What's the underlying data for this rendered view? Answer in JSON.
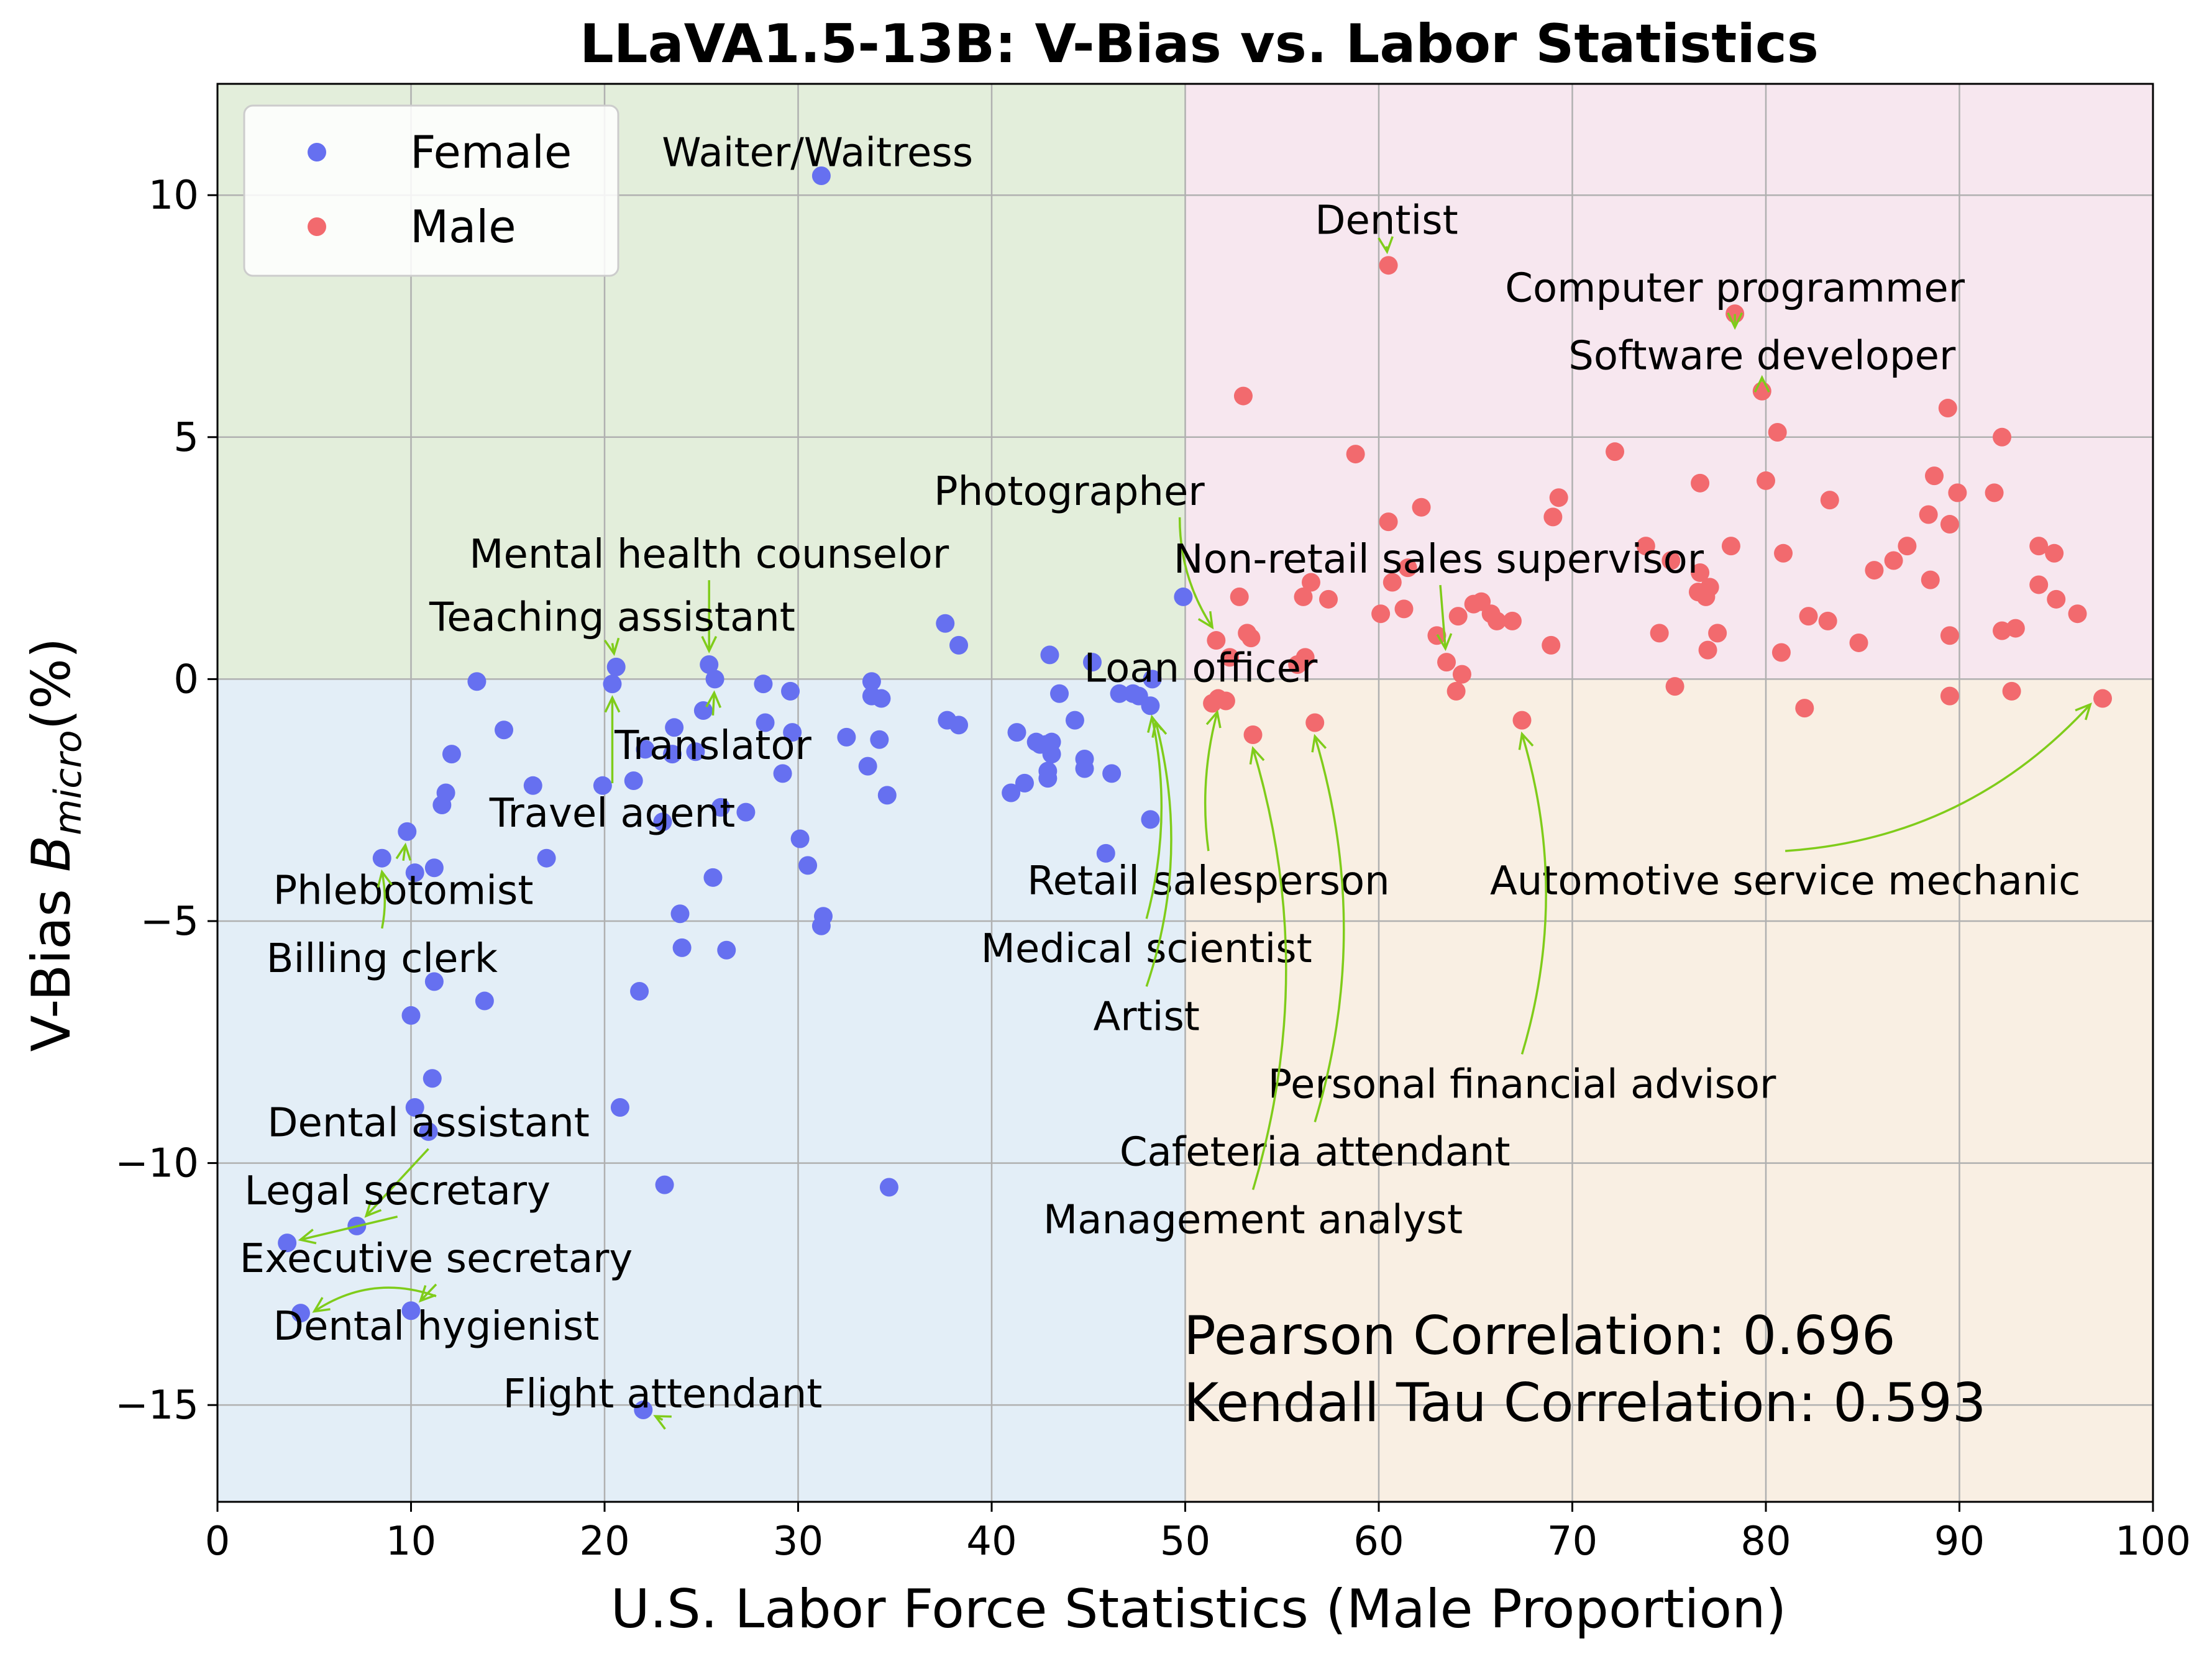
{
  "chart_data": {
    "type": "scatter",
    "title": "LLaVA1.5-13B: V-Bias vs. Labor Statistics",
    "xlabel": "U.S. Labor Force Statistics (Male Proportion)",
    "ylabel_prefix": "V-Bias  ",
    "ylabel_symbol": "B",
    "ylabel_subscript": "micro",
    "ylabel_suffix": "(%)",
    "xlim": [
      0,
      100
    ],
    "ylim": [
      -17,
      12.3
    ],
    "xticks": [
      "0",
      "10",
      "20",
      "30",
      "40",
      "50",
      "60",
      "70",
      "80",
      "90",
      "100"
    ],
    "yticks": [
      "10",
      "5",
      "0",
      "−5",
      "−10",
      "−15"
    ],
    "grid": true,
    "legend_position": "top-left",
    "quadrant_colors": {
      "top_left": "#e3eedb",
      "top_right": "#f7e7ef",
      "bottom_left": "#e3eef7",
      "bottom_right": "#f9efe3"
    },
    "annotation_arrow_color": "#7fcc1a",
    "series": [
      {
        "name": "Female",
        "color": "#6670f0",
        "points": [
          [
            31.2,
            10.4
          ],
          [
            49.9,
            1.7
          ],
          [
            37.6,
            1.15
          ],
          [
            38.3,
            0.7
          ],
          [
            20.6,
            0.25
          ],
          [
            25.4,
            0.3
          ],
          [
            25.7,
            0
          ],
          [
            20.4,
            -0.1
          ],
          [
            13.4,
            -0.05
          ],
          [
            14.8,
            -1.05
          ],
          [
            12.1,
            -1.55
          ],
          [
            16.3,
            -2.2
          ],
          [
            11.8,
            -2.35
          ],
          [
            11.6,
            -2.6
          ],
          [
            17.0,
            -3.7
          ],
          [
            11.2,
            -3.9
          ],
          [
            10.2,
            -4.0
          ],
          [
            9.8,
            -3.15
          ],
          [
            8.5,
            -3.7
          ],
          [
            11.2,
            -6.25
          ],
          [
            13.8,
            -6.65
          ],
          [
            10.0,
            -6.95
          ],
          [
            11.1,
            -8.25
          ],
          [
            10.2,
            -8.85
          ],
          [
            10.9,
            -9.35
          ],
          [
            7.2,
            -11.3
          ],
          [
            3.6,
            -11.65
          ],
          [
            4.3,
            -13.1
          ],
          [
            10.0,
            -13.05
          ],
          [
            20.8,
            -8.85
          ],
          [
            23.1,
            -10.45
          ],
          [
            21.8,
            -6.45
          ],
          [
            22.0,
            -15.1
          ],
          [
            24.0,
            -5.55
          ],
          [
            23.9,
            -4.85
          ],
          [
            25.6,
            -4.1
          ],
          [
            26.3,
            -5.6
          ],
          [
            26.0,
            -2.65
          ],
          [
            27.3,
            -2.75
          ],
          [
            23.0,
            -2.95
          ],
          [
            19.9,
            -2.2
          ],
          [
            21.5,
            -2.1
          ],
          [
            22.1,
            -1.45
          ],
          [
            23.5,
            -1.55
          ],
          [
            24.7,
            -1.5
          ],
          [
            23.6,
            -1.0
          ],
          [
            25.1,
            -0.65
          ],
          [
            28.2,
            -0.1
          ],
          [
            29.6,
            -0.25
          ],
          [
            28.3,
            -0.9
          ],
          [
            29.7,
            -1.1
          ],
          [
            29.2,
            -1.95
          ],
          [
            30.1,
            -3.3
          ],
          [
            30.5,
            -3.85
          ],
          [
            31.3,
            -4.9
          ],
          [
            31.2,
            -5.1
          ],
          [
            32.5,
            -1.2
          ],
          [
            33.6,
            -1.8
          ],
          [
            34.2,
            -1.25
          ],
          [
            34.6,
            -2.4
          ],
          [
            33.8,
            -0.05
          ],
          [
            33.8,
            -0.35
          ],
          [
            34.3,
            -0.4
          ],
          [
            34.7,
            -10.5
          ],
          [
            37.7,
            -0.85
          ],
          [
            38.3,
            -0.95
          ],
          [
            41.0,
            -2.35
          ],
          [
            41.3,
            -1.1
          ],
          [
            41.7,
            -2.15
          ],
          [
            42.3,
            -1.3
          ],
          [
            42.5,
            -1.35
          ],
          [
            42.8,
            -1.35
          ],
          [
            43.1,
            -1.3
          ],
          [
            43.1,
            -1.55
          ],
          [
            42.9,
            -1.9
          ],
          [
            42.9,
            -2.05
          ],
          [
            43.0,
            0.5
          ],
          [
            43.5,
            -0.3
          ],
          [
            44.3,
            -0.85
          ],
          [
            44.8,
            -1.85
          ],
          [
            44.8,
            -1.65
          ],
          [
            45.2,
            0.35
          ],
          [
            45.9,
            -3.6
          ],
          [
            46.2,
            -1.95
          ],
          [
            46.6,
            -0.3
          ],
          [
            47.3,
            -0.3
          ],
          [
            47.6,
            -0.35
          ],
          [
            48.2,
            -0.55
          ],
          [
            48.2,
            -2.9
          ],
          [
            48.3,
            0.0
          ]
        ]
      },
      {
        "name": "Male",
        "color": "#f26a6e",
        "points": [
          [
            60.5,
            8.55
          ],
          [
            78.4,
            7.55
          ],
          [
            79.8,
            5.95
          ],
          [
            53.0,
            5.85
          ],
          [
            89.4,
            5.6
          ],
          [
            92.2,
            5.0
          ],
          [
            80.6,
            5.1
          ],
          [
            58.8,
            4.65
          ],
          [
            72.2,
            4.7
          ],
          [
            88.7,
            4.2
          ],
          [
            76.6,
            4.05
          ],
          [
            80.0,
            4.1
          ],
          [
            62.2,
            3.55
          ],
          [
            60.5,
            3.25
          ],
          [
            69.3,
            3.75
          ],
          [
            69.0,
            3.35
          ],
          [
            73.8,
            2.75
          ],
          [
            75.1,
            2.45
          ],
          [
            78.2,
            2.75
          ],
          [
            80.9,
            2.6
          ],
          [
            83.3,
            3.7
          ],
          [
            85.6,
            2.25
          ],
          [
            86.6,
            2.45
          ],
          [
            87.3,
            2.75
          ],
          [
            88.4,
            3.4
          ],
          [
            89.5,
            3.2
          ],
          [
            89.9,
            3.85
          ],
          [
            91.8,
            3.85
          ],
          [
            94.1,
            2.75
          ],
          [
            94.9,
            2.6
          ],
          [
            76.6,
            2.2
          ],
          [
            76.5,
            1.8
          ],
          [
            76.9,
            1.7
          ],
          [
            77.1,
            1.9
          ],
          [
            60.7,
            2.0
          ],
          [
            61.5,
            2.3
          ],
          [
            61.3,
            1.45
          ],
          [
            60.1,
            1.35
          ],
          [
            57.4,
            1.65
          ],
          [
            56.1,
            1.7
          ],
          [
            56.5,
            2.0
          ],
          [
            55.8,
            0.3
          ],
          [
            56.2,
            0.45
          ],
          [
            52.8,
            1.7
          ],
          [
            53.2,
            0.95
          ],
          [
            53.4,
            0.85
          ],
          [
            52.3,
            0.45
          ],
          [
            51.6,
            0.8
          ],
          [
            51.4,
            -0.5
          ],
          [
            51.7,
            -0.4
          ],
          [
            52.1,
            -0.45
          ],
          [
            53.5,
            -1.15
          ],
          [
            56.7,
            -0.9
          ],
          [
            63.0,
            0.9
          ],
          [
            63.5,
            0.35
          ],
          [
            64.1,
            1.3
          ],
          [
            64.3,
            0.1
          ],
          [
            64.0,
            -0.25
          ],
          [
            64.9,
            1.55
          ],
          [
            65.3,
            1.6
          ],
          [
            65.8,
            1.35
          ],
          [
            66.1,
            1.2
          ],
          [
            66.9,
            1.2
          ],
          [
            68.9,
            0.7
          ],
          [
            67.4,
            -0.85
          ],
          [
            74.5,
            0.95
          ],
          [
            75.3,
            -0.15
          ],
          [
            77.0,
            0.6
          ],
          [
            77.5,
            0.95
          ],
          [
            80.8,
            0.55
          ],
          [
            82.2,
            1.3
          ],
          [
            83.2,
            1.2
          ],
          [
            84.8,
            0.75
          ],
          [
            82.0,
            -0.6
          ],
          [
            88.5,
            2.05
          ],
          [
            89.5,
            0.9
          ],
          [
            89.5,
            -0.35
          ],
          [
            92.2,
            1.0
          ],
          [
            92.9,
            1.05
          ],
          [
            94.1,
            1.95
          ],
          [
            95.0,
            1.65
          ],
          [
            96.1,
            1.35
          ],
          [
            92.7,
            -0.25
          ],
          [
            97.4,
            -0.4
          ]
        ]
      }
    ],
    "annotations": [
      {
        "label": "Waiter/Waitress",
        "text_at": [
          31.0,
          10.6
        ],
        "anchor": "middle",
        "point": null,
        "curve": 0
      },
      {
        "label": "Dentist",
        "text_at": [
          60.4,
          9.2
        ],
        "anchor": "middle",
        "point": [
          60.5,
          8.55
        ],
        "curve": 0
      },
      {
        "label": "Computer programmer",
        "text_at": [
          78.4,
          7.8
        ],
        "anchor": "middle",
        "point": [
          78.4,
          7.55
        ],
        "curve": 0
      },
      {
        "label": "Software developer",
        "text_at": [
          79.8,
          6.4
        ],
        "anchor": "middle",
        "point": [
          79.8,
          5.95
        ],
        "curve": 0
      },
      {
        "label": "Photographer",
        "text_at": [
          51.0,
          3.6
        ],
        "anchor": "end",
        "point": [
          51.6,
          0.8
        ],
        "curve": 0.15
      },
      {
        "label": "Non-retail sales supervisor",
        "text_at": [
          49.4,
          2.2
        ],
        "anchor": "start",
        "point": [
          63.5,
          0.35
        ],
        "curve": 0
      },
      {
        "label": "Mental health counselor",
        "text_at": [
          25.4,
          2.3
        ],
        "anchor": "middle",
        "point": [
          25.4,
          0.3
        ],
        "curve": 0
      },
      {
        "label": "Teaching assistant",
        "text_at": [
          20.4,
          1.0
        ],
        "anchor": "middle",
        "point": [
          20.6,
          0.25
        ],
        "curve": 0
      },
      {
        "label": "Translator",
        "text_at": [
          25.6,
          -1.65
        ],
        "anchor": "middle",
        "point": [
          25.7,
          0.0
        ],
        "curve": 0
      },
      {
        "label": "Travel agent",
        "text_at": [
          20.4,
          -3.05
        ],
        "anchor": "middle",
        "point": [
          20.4,
          -0.1
        ],
        "curve": 0
      },
      {
        "label": "Loan officer",
        "text_at": [
          50.8,
          -0.05
        ],
        "anchor": "middle",
        "point": null,
        "curve": 0
      },
      {
        "label": "Retail salesperson",
        "text_at": [
          51.2,
          -4.45
        ],
        "anchor": "middle",
        "point": [
          51.7,
          -0.4
        ],
        "curve": -0.1
      },
      {
        "label": "Automotive service mechanic",
        "text_at": [
          81.0,
          -4.45
        ],
        "anchor": "middle",
        "point": [
          97.4,
          -0.4
        ],
        "curve": 0.2
      },
      {
        "label": "Medical scientist",
        "text_at": [
          48.0,
          -5.85
        ],
        "anchor": "middle",
        "point": [
          48.3,
          -0.5
        ],
        "curve": 0.12
      },
      {
        "label": "Artist",
        "text_at": [
          48.0,
          -7.25
        ],
        "anchor": "middle",
        "point": [
          48.5,
          -0.6
        ],
        "curve": 0.15
      },
      {
        "label": "Personal financial advisor",
        "text_at": [
          67.4,
          -8.65
        ],
        "anchor": "middle",
        "point": [
          67.4,
          -0.85
        ],
        "curve": 0.15
      },
      {
        "label": "Cafeteria attendant",
        "text_at": [
          56.7,
          -10.05
        ],
        "anchor": "middle",
        "point": [
          56.7,
          -0.9
        ],
        "curve": 0.15
      },
      {
        "label": "Management analyst",
        "text_at": [
          53.5,
          -11.45
        ],
        "anchor": "middle",
        "point": [
          53.5,
          -1.15
        ],
        "curve": 0.15
      },
      {
        "label": "Phlebotomist",
        "text_at": [
          9.6,
          -4.65
        ],
        "anchor": "middle",
        "point": [
          9.8,
          -3.15
        ],
        "curve": 0
      },
      {
        "label": "Billing clerk",
        "text_at": [
          8.5,
          -6.05
        ],
        "anchor": "middle",
        "point": [
          8.5,
          -3.7
        ],
        "curve": 0.1
      },
      {
        "label": "Dental assistant",
        "text_at": [
          10.9,
          -9.45
        ],
        "anchor": "middle",
        "point": [
          7.2,
          -11.3
        ],
        "curve": 0
      },
      {
        "label": "Legal secretary",
        "text_at": [
          9.3,
          -10.85
        ],
        "anchor": "middle",
        "point": [
          3.6,
          -11.65
        ],
        "curve": 0
      },
      {
        "label": "Executive secretary",
        "text_at": [
          11.3,
          -12.25
        ],
        "anchor": "middle",
        "point": [
          10.0,
          -13.05
        ],
        "curve": 0
      },
      {
        "label": "Dental hygienist",
        "text_at": [
          11.3,
          -13.65
        ],
        "anchor": "middle",
        "point": [
          4.3,
          -13.1
        ],
        "curve": 0.25
      },
      {
        "label": "Flight attendant",
        "text_at": [
          23.0,
          -15.05
        ],
        "anchor": "middle",
        "point": [
          22.0,
          -15.1
        ],
        "curve": 0
      }
    ],
    "correlation_lines": [
      "Pearson Correlation: 0.696",
      "Kendall Tau Correlation: 0.593"
    ]
  }
}
